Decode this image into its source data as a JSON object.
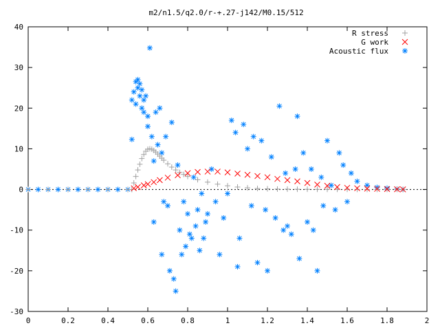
{
  "chart_data": {
    "type": "scatter",
    "title": "m2/n1.5/q2.0/r-+.27-j142/M0.15/512",
    "xlabel": "",
    "ylabel": "",
    "xlim": [
      0,
      2
    ],
    "ylim": [
      -30,
      40
    ],
    "x_ticks": [
      0,
      0.2,
      0.4,
      0.6,
      0.8,
      1,
      1.2,
      1.4,
      1.6,
      1.8,
      2
    ],
    "x_tick_labels": [
      "0",
      "0.2",
      "0.4",
      "0.6",
      "0.8",
      "1",
      "1.2",
      "1.4",
      "1.6",
      "1.8",
      "2"
    ],
    "y_ticks": [
      -30,
      -20,
      -10,
      0,
      10,
      20,
      30,
      40
    ],
    "y_tick_labels": [
      "-30",
      "-20",
      "-10",
      "0",
      "10",
      "20",
      "30",
      "40"
    ],
    "grid": false,
    "legend_position": "top-right",
    "series": [
      {
        "name": "R stress",
        "marker": "plus",
        "color": "#a0a0a0",
        "x": [
          0,
          0.1,
          0.2,
          0.3,
          0.4,
          0.5,
          0.52,
          0.53,
          0.54,
          0.55,
          0.56,
          0.57,
          0.58,
          0.59,
          0.6,
          0.61,
          0.62,
          0.63,
          0.64,
          0.65,
          0.66,
          0.67,
          0.68,
          0.7,
          0.72,
          0.74,
          0.76,
          0.78,
          0.8,
          0.85,
          0.9,
          0.95,
          1.0,
          1.05,
          1.1,
          1.15,
          1.2,
          1.25,
          1.3,
          1.35,
          1.4,
          1.45,
          1.5,
          1.55,
          1.6,
          1.65,
          1.7,
          1.75,
          1.8,
          1.85,
          1.88
        ],
        "y": [
          0,
          0,
          0,
          0,
          0,
          0,
          0,
          1.6,
          3.2,
          4.8,
          6.2,
          7.6,
          8.6,
          9.4,
          9.9,
          10.0,
          9.9,
          9.6,
          9.2,
          8.7,
          8.2,
          7.7,
          7.2,
          6.3,
          5.5,
          4.8,
          4.2,
          3.7,
          3.2,
          2.4,
          1.8,
          1.3,
          0.9,
          0.6,
          0.4,
          0.25,
          0.15,
          0.1,
          0.08,
          0.06,
          0.05,
          0.04,
          0.04,
          0.03,
          0.03,
          0.02,
          0.02,
          0.02,
          0.01,
          0.01,
          0.01
        ]
      },
      {
        "name": "G work",
        "marker": "cross",
        "color": "#ff0000",
        "x": [
          0.53,
          0.55,
          0.58,
          0.6,
          0.63,
          0.66,
          0.7,
          0.75,
          0.8,
          0.85,
          0.9,
          0.95,
          1.0,
          1.05,
          1.1,
          1.15,
          1.2,
          1.25,
          1.3,
          1.35,
          1.4,
          1.45,
          1.5,
          1.55,
          1.6,
          1.65,
          1.7,
          1.75,
          1.8,
          1.85,
          1.88
        ],
        "y": [
          0.3,
          0.6,
          1.0,
          1.3,
          1.8,
          2.3,
          2.9,
          3.5,
          4.0,
          4.3,
          4.4,
          4.4,
          4.2,
          3.9,
          3.6,
          3.3,
          3.0,
          2.6,
          2.3,
          2.0,
          1.6,
          1.2,
          0.9,
          0.6,
          0.4,
          0.3,
          0.2,
          0.15,
          0.1,
          0.05,
          0.02
        ]
      },
      {
        "name": "Acoustic flux",
        "marker": "star",
        "color": "#0080ff",
        "x": [
          0,
          0.05,
          0.1,
          0.15,
          0.2,
          0.25,
          0.3,
          0.35,
          0.4,
          0.45,
          0.5,
          0.52,
          0.52,
          0.53,
          0.54,
          0.54,
          0.55,
          0.55,
          0.56,
          0.56,
          0.57,
          0.57,
          0.58,
          0.58,
          0.59,
          0.6,
          0.6,
          0.61,
          0.62,
          0.63,
          0.63,
          0.64,
          0.65,
          0.66,
          0.67,
          0.67,
          0.68,
          0.69,
          0.7,
          0.71,
          0.72,
          0.73,
          0.74,
          0.75,
          0.76,
          0.77,
          0.78,
          0.79,
          0.8,
          0.81,
          0.82,
          0.83,
          0.84,
          0.85,
          0.86,
          0.87,
          0.88,
          0.89,
          0.9,
          0.92,
          0.94,
          0.96,
          0.98,
          1.0,
          1.02,
          1.04,
          1.05,
          1.06,
          1.08,
          1.1,
          1.12,
          1.13,
          1.15,
          1.17,
          1.19,
          1.2,
          1.22,
          1.24,
          1.26,
          1.28,
          1.29,
          1.3,
          1.32,
          1.34,
          1.35,
          1.36,
          1.38,
          1.4,
          1.42,
          1.43,
          1.45,
          1.47,
          1.48,
          1.5,
          1.52,
          1.54,
          1.56,
          1.58,
          1.6,
          1.62,
          1.65,
          1.7,
          1.75,
          1.8,
          1.85,
          1.88
        ],
        "y": [
          0,
          0,
          0,
          0,
          0,
          0,
          0,
          0,
          0,
          0,
          0,
          12.3,
          22,
          24,
          26.5,
          21,
          27,
          25,
          26,
          23,
          24.5,
          20,
          22,
          19,
          23,
          18,
          15.5,
          34.8,
          13,
          7,
          -8,
          19,
          11,
          20,
          9,
          -16,
          -3,
          13,
          -4,
          -20,
          16.5,
          -22,
          -25,
          6,
          -10,
          -16,
          -3,
          -14,
          -6,
          -11,
          -12,
          3,
          -9,
          -5,
          -15,
          -1,
          -12,
          -8,
          -6,
          5,
          -3,
          -16,
          -7,
          -1,
          17,
          14,
          -19,
          -12,
          16,
          10,
          -4,
          13,
          -18,
          12,
          -5,
          -20,
          8,
          -7,
          20.5,
          -10,
          4,
          -9,
          -11,
          5,
          18,
          -17,
          9,
          -8,
          5,
          -10,
          -20,
          3,
          -4,
          12,
          1,
          -5,
          9,
          6,
          -3,
          4,
          2,
          1,
          0.5,
          0.3,
          0.1,
          0
        ]
      }
    ]
  }
}
